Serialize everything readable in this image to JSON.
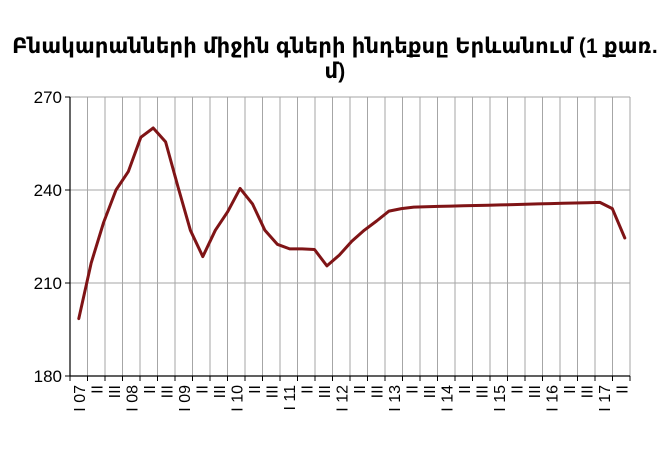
{
  "chart_data": {
    "type": "line",
    "title": "Բնակարանների միջին գների ինդեքսը Երևանում (1 քառ. մ)",
    "xlabel": "",
    "ylabel": "",
    "ylim": [
      180,
      270
    ],
    "yticks": [
      180,
      210,
      240,
      270
    ],
    "grid": true,
    "x_tick_labels": [
      "I 07",
      "II",
      "III",
      "I 08",
      "II",
      "III",
      "I 09",
      "II",
      "III",
      "I 10",
      "II",
      "III",
      "I 11",
      "II",
      "III",
      "I 12",
      "II",
      "III",
      "I 13",
      "II",
      "III",
      "I 14",
      "II",
      "III",
      "I 15",
      "II",
      "III",
      "I 16",
      "II",
      "III",
      "I 17",
      "II"
    ],
    "series": [
      {
        "color": "#7f1416",
        "values": [
          198.5,
          216.5,
          229.5,
          240,
          246,
          257,
          260,
          255.5,
          241,
          227,
          218.5,
          227,
          233,
          240.5,
          235.5,
          227,
          222.5,
          221,
          221,
          220.8,
          215.5,
          219,
          223.5,
          227,
          230,
          233.2,
          234,
          234.5,
          234.6,
          234.7,
          234.8,
          234.9,
          235,
          235.1,
          235.2,
          235.3,
          235.4,
          235.5,
          235.6,
          235.7,
          235.8,
          235.9,
          236,
          234,
          224.5
        ]
      }
    ]
  }
}
